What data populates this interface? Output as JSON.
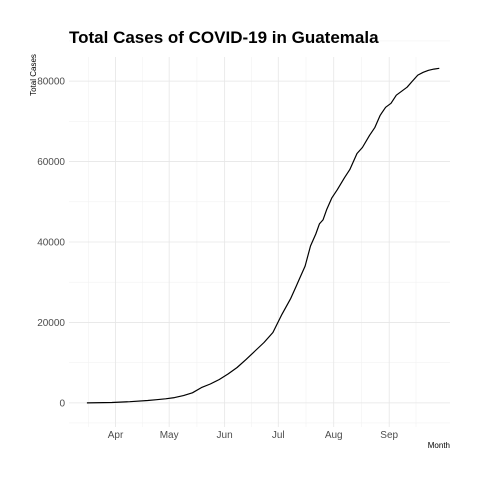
{
  "chart_data": {
    "type": "line",
    "title": "Total Cases of COVID-19 in Guatemala",
    "xlabel": "Month",
    "ylabel": "Total Cases",
    "grid": true,
    "legend": "none",
    "x_unit": "day_of_year_2020",
    "xlim": [
      66,
      279
    ],
    "ylim": [
      -6000,
      86000
    ],
    "x_ticks": [
      {
        "label": "Apr",
        "day": 92
      },
      {
        "label": "May",
        "day": 122
      },
      {
        "label": "Jun",
        "day": 153
      },
      {
        "label": "Jul",
        "day": 183
      },
      {
        "label": "Aug",
        "day": 214
      },
      {
        "label": "Sep",
        "day": 245
      }
    ],
    "y_ticks": [
      0,
      20000,
      40000,
      60000,
      80000
    ],
    "series": [
      {
        "name": "Total Cases",
        "x": [
          76,
          90,
          100,
          110,
          115,
          120,
          125,
          130,
          135,
          140,
          145,
          150,
          155,
          160,
          165,
          170,
          175,
          180,
          185,
          190,
          193,
          195,
          198,
          201,
          204,
          206,
          208,
          210,
          213,
          216,
          220,
          223,
          227,
          230,
          234,
          237,
          240,
          243,
          246,
          249,
          252,
          255,
          258,
          261,
          264,
          267,
          270,
          273
        ],
        "values": [
          0,
          100,
          300,
          600,
          800,
          1000,
          1300,
          1800,
          2500,
          3800,
          4700,
          5800,
          7200,
          8800,
          10800,
          12900,
          15000,
          17500,
          22000,
          26000,
          29000,
          31000,
          34000,
          39000,
          42000,
          44500,
          45500,
          48000,
          51000,
          53000,
          56000,
          58000,
          62000,
          63500,
          66500,
          68500,
          71500,
          73500,
          74500,
          76500,
          77500,
          78500,
          80000,
          81500,
          82200,
          82700,
          83000,
          83200
        ]
      }
    ]
  }
}
